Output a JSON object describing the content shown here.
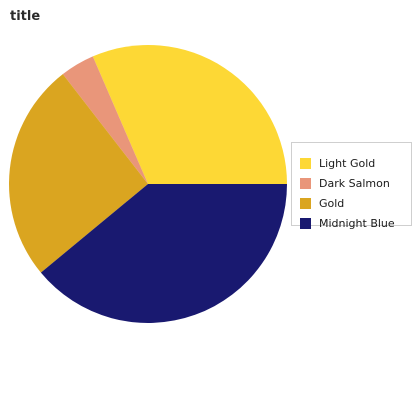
{
  "chart_data": {
    "type": "pie",
    "title": "title",
    "categories": [
      "Light Gold",
      "Dark Salmon",
      "Gold",
      "Midnight Blue"
    ],
    "values": [
      31.5,
      4.0,
      25.5,
      39.0
    ],
    "colors": [
      "#fdd835",
      "#e9967a",
      "#daa520",
      "#191970"
    ],
    "start_angle_deg": 0,
    "direction": "counterclockwise",
    "legend_position": "right"
  }
}
